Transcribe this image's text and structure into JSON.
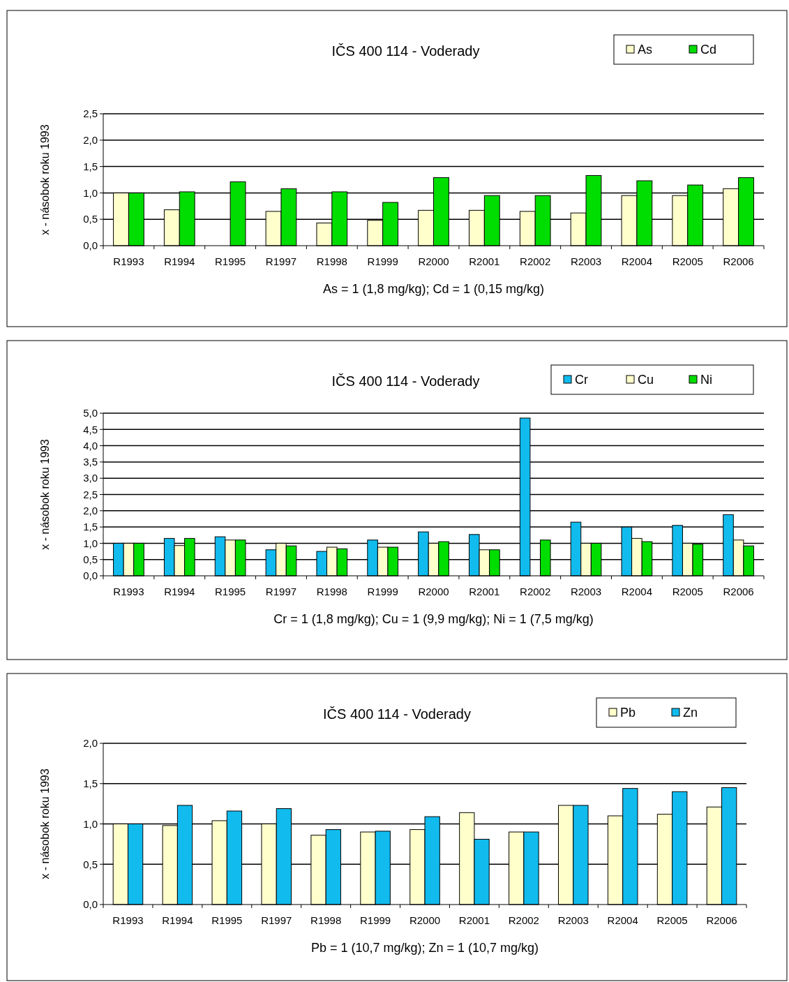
{
  "chart_data": [
    {
      "type": "bar",
      "title": "IČS 400 114 - Voderady",
      "ylabel": "x - násobok roku 1993",
      "annotations": [
        "As = 1 (1,8 mg/kg); Cd = 1 (0,15 mg/kg)"
      ],
      "categories": [
        "R1993",
        "R1994",
        "R1995",
        "R1997",
        "R1998",
        "R1999",
        "R2000",
        "R2001",
        "R2002",
        "R2003",
        "R2004",
        "R2005",
        "R2006"
      ],
      "series": [
        {
          "name": "As",
          "color": "#ffffcc",
          "values": [
            1.0,
            0.68,
            null,
            0.65,
            0.43,
            0.48,
            0.67,
            0.67,
            0.65,
            0.62,
            0.95,
            0.95,
            1.08
          ]
        },
        {
          "name": "Cd",
          "color": "#00dd00",
          "values": [
            1.0,
            1.02,
            1.21,
            1.08,
            1.02,
            0.82,
            1.29,
            0.95,
            0.95,
            1.33,
            1.23,
            1.15,
            1.29
          ]
        }
      ],
      "ylim": [
        0,
        2.5
      ],
      "yticks": [
        {
          "value": 0,
          "label": "0,0"
        },
        {
          "value": 0.5,
          "label": "0,5"
        },
        {
          "value": 1,
          "label": "1,0"
        },
        {
          "value": 1.5,
          "label": "1,5"
        },
        {
          "value": 2,
          "label": "2,0"
        },
        {
          "value": 2.5,
          "label": "2,5"
        }
      ],
      "grid": "y",
      "legend": "top right"
    },
    {
      "type": "bar",
      "title": "IČS 400 114 - Voderady",
      "ylabel": "x - násobok roku 1993",
      "annotations": [
        "Cr = 1 (1,8 mg/kg); Cu = 1 (9,9 mg/kg); Ni = 1 (7,5 mg/kg)"
      ],
      "categories": [
        "R1993",
        "R1994",
        "R1995",
        "R1997",
        "R1998",
        "R1999",
        "R2000",
        "R2001",
        "R2002",
        "R2003",
        "R2004",
        "R2005",
        "R2006"
      ],
      "series": [
        {
          "name": "Cr",
          "color": "#11bbee",
          "values": [
            1.0,
            1.15,
            1.2,
            0.8,
            0.75,
            1.1,
            1.35,
            1.27,
            4.85,
            1.65,
            1.5,
            1.55,
            1.88
          ]
        },
        {
          "name": "Cu",
          "color": "#ffffcc",
          "values": [
            1.0,
            0.93,
            1.1,
            1.0,
            0.88,
            0.88,
            1.0,
            0.8,
            null,
            1.0,
            1.15,
            1.0,
            1.1
          ]
        },
        {
          "name": "Ni",
          "color": "#00dd00",
          "values": [
            1.0,
            1.15,
            1.1,
            0.92,
            0.83,
            0.88,
            1.05,
            0.8,
            1.1,
            1.0,
            1.05,
            0.97,
            0.92
          ]
        }
      ],
      "ylim": [
        0,
        5
      ],
      "yticks": [
        {
          "value": 0,
          "label": "0,0"
        },
        {
          "value": 0.5,
          "label": "0,5"
        },
        {
          "value": 1,
          "label": "1,0"
        },
        {
          "value": 1.5,
          "label": "1,5"
        },
        {
          "value": 2,
          "label": "2,0"
        },
        {
          "value": 2.5,
          "label": "2,5"
        },
        {
          "value": 3,
          "label": "3,0"
        },
        {
          "value": 3.5,
          "label": "3,5"
        },
        {
          "value": 4,
          "label": "4,0"
        },
        {
          "value": 4.5,
          "label": "4,5"
        },
        {
          "value": 5,
          "label": "5,0"
        }
      ],
      "grid": "y",
      "legend": "top right"
    },
    {
      "type": "bar",
      "title": "IČS 400 114 - Voderady",
      "ylabel": "x - násobok roku 1993",
      "annotations": [
        "Pb = 1 (10,7 mg/kg); Zn = 1 (10,7 mg/kg)"
      ],
      "categories": [
        "R1993",
        "R1994",
        "R1995",
        "R1997",
        "R1998",
        "R1999",
        "R2000",
        "R2001",
        "R2002",
        "R2003",
        "R2004",
        "R2005",
        "R2006"
      ],
      "series": [
        {
          "name": "Pb",
          "color": "#ffffcc",
          "values": [
            1.0,
            0.98,
            1.04,
            1.0,
            0.86,
            0.9,
            0.93,
            1.14,
            0.9,
            1.23,
            1.1,
            1.12,
            1.21
          ]
        },
        {
          "name": "Zn",
          "color": "#11bbee",
          "values": [
            1.0,
            1.23,
            1.16,
            1.19,
            0.93,
            0.91,
            1.09,
            0.81,
            0.9,
            1.23,
            1.44,
            1.4,
            1.45
          ]
        }
      ],
      "ylim": [
        0,
        2
      ],
      "yticks": [
        {
          "value": 0,
          "label": "0,0"
        },
        {
          "value": 0.5,
          "label": "0,5"
        },
        {
          "value": 1,
          "label": "1,0"
        },
        {
          "value": 1.5,
          "label": "1,5"
        },
        {
          "value": 2,
          "label": "2,0"
        }
      ],
      "grid": "y",
      "legend": "top right"
    }
  ]
}
